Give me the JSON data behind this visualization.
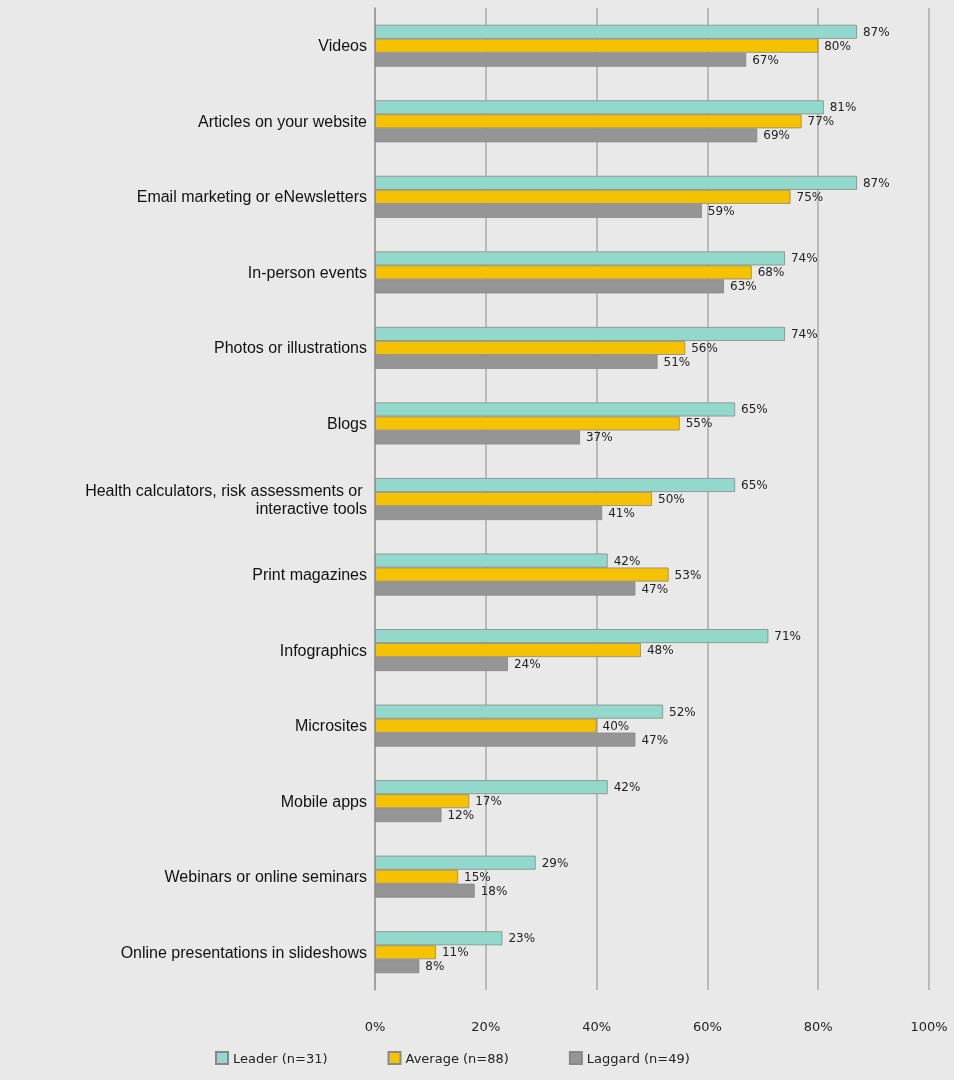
{
  "chart_data": {
    "type": "bar",
    "orientation": "horizontal",
    "categories": [
      "Videos",
      "Articles on your website",
      "Email marketing or eNewsletters",
      "In-person events",
      "Photos or illustrations",
      "Blogs",
      "Health calculators, risk assessments or interactive tools",
      "Print magazines",
      "Infographics",
      "Microsites",
      "Mobile apps",
      "Webinars or online seminars",
      "Online presentations in slideshows"
    ],
    "series": [
      {
        "name": "Leader (n=31)",
        "color": "#93d9cb",
        "values": [
          87,
          81,
          87,
          74,
          74,
          65,
          65,
          42,
          71,
          52,
          42,
          29,
          23
        ],
        "value_labels": [
          "87%",
          "81%",
          "87%",
          "74%",
          "74%",
          "65%",
          "65%",
          "42%",
          "71%",
          "52%",
          "42%",
          "29%",
          "23%"
        ]
      },
      {
        "name": "Average (n=88)",
        "color": "#f5c200",
        "values": [
          80,
          77,
          75,
          68,
          56,
          55,
          50,
          53,
          48,
          40,
          17,
          15,
          11
        ],
        "value_labels": [
          "80%",
          "77%",
          "75%",
          "68%",
          "56%",
          "55%",
          "50%",
          "53%",
          "48%",
          "40%",
          "17%",
          "15%",
          "11%"
        ]
      },
      {
        "name": "Laggard (n=49)",
        "color": "#959595",
        "values": [
          67,
          69,
          59,
          63,
          51,
          37,
          41,
          47,
          24,
          47,
          12,
          18,
          8
        ],
        "value_labels": [
          "67%",
          "69%",
          "59%",
          "63%",
          "51%",
          "37%",
          "41%",
          "47%",
          "24%",
          "47%",
          "12%",
          "18%",
          "8%"
        ]
      }
    ],
    "xlim": [
      0,
      100
    ],
    "xticks": [
      {
        "value": 0,
        "label": "0%"
      },
      {
        "value": 20,
        "label": "20%"
      },
      {
        "value": 40,
        "label": "40%"
      },
      {
        "value": 60,
        "label": "60%"
      },
      {
        "value": 80,
        "label": "80%"
      },
      {
        "value": 100,
        "label": "100%"
      }
    ],
    "grid": "x",
    "legend": "bottom"
  }
}
